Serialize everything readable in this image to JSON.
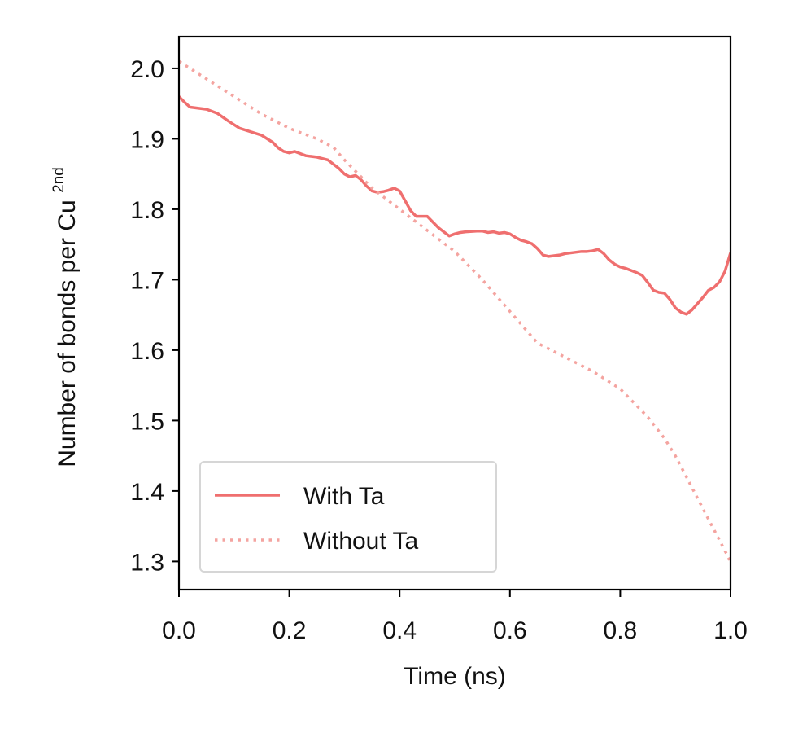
{
  "chart_data": {
    "type": "line",
    "title": "",
    "xlabel": "Time (ns)",
    "ylabel_main": "Number of bonds per Cu",
    "ylabel_sup": "2nd",
    "xlim": [
      0.0,
      1.0
    ],
    "ylim": [
      1.26,
      2.045
    ],
    "xticks": [
      0.0,
      0.2,
      0.4,
      0.6,
      0.8,
      1.0
    ],
    "xtick_labels": [
      "0.0",
      "0.2",
      "0.4",
      "0.6",
      "0.8",
      "1.0"
    ],
    "yticks": [
      1.3,
      1.4,
      1.5,
      1.6,
      1.7,
      1.8,
      1.9,
      2.0
    ],
    "ytick_labels": [
      "1.3",
      "1.4",
      "1.5",
      "1.6",
      "1.7",
      "1.8",
      "1.9",
      "2.0"
    ],
    "legend_position": "lower-left",
    "series": [
      {
        "name": "With Ta",
        "style": "solid",
        "color": "#ef6f6f",
        "x": [
          0.0,
          0.01,
          0.02,
          0.03,
          0.05,
          0.07,
          0.09,
          0.11,
          0.13,
          0.15,
          0.17,
          0.18,
          0.19,
          0.2,
          0.21,
          0.22,
          0.23,
          0.25,
          0.27,
          0.29,
          0.3,
          0.31,
          0.32,
          0.33,
          0.34,
          0.35,
          0.36,
          0.37,
          0.38,
          0.39,
          0.4,
          0.41,
          0.42,
          0.43,
          0.45,
          0.46,
          0.47,
          0.48,
          0.49,
          0.5,
          0.51,
          0.52,
          0.54,
          0.55,
          0.56,
          0.57,
          0.58,
          0.59,
          0.6,
          0.61,
          0.62,
          0.63,
          0.64,
          0.65,
          0.66,
          0.67,
          0.68,
          0.69,
          0.7,
          0.71,
          0.72,
          0.73,
          0.74,
          0.75,
          0.76,
          0.77,
          0.78,
          0.79,
          0.8,
          0.81,
          0.82,
          0.83,
          0.84,
          0.85,
          0.86,
          0.87,
          0.88,
          0.89,
          0.9,
          0.91,
          0.92,
          0.93,
          0.94,
          0.95,
          0.96,
          0.97,
          0.98,
          0.99,
          1.0
        ],
        "values": [
          1.96,
          1.952,
          1.945,
          1.944,
          1.942,
          1.936,
          1.925,
          1.915,
          1.91,
          1.905,
          1.895,
          1.887,
          1.882,
          1.88,
          1.882,
          1.879,
          1.876,
          1.874,
          1.87,
          1.858,
          1.85,
          1.846,
          1.848,
          1.842,
          1.833,
          1.826,
          1.824,
          1.825,
          1.827,
          1.83,
          1.826,
          1.812,
          1.798,
          1.79,
          1.79,
          1.782,
          1.774,
          1.768,
          1.762,
          1.765,
          1.767,
          1.768,
          1.769,
          1.769,
          1.767,
          1.768,
          1.766,
          1.767,
          1.765,
          1.76,
          1.756,
          1.754,
          1.751,
          1.744,
          1.735,
          1.733,
          1.734,
          1.735,
          1.737,
          1.738,
          1.739,
          1.74,
          1.74,
          1.741,
          1.743,
          1.737,
          1.728,
          1.722,
          1.718,
          1.716,
          1.713,
          1.71,
          1.706,
          1.696,
          1.685,
          1.682,
          1.681,
          1.672,
          1.66,
          1.654,
          1.651,
          1.657,
          1.666,
          1.675,
          1.685,
          1.689,
          1.697,
          1.712,
          1.738
        ]
      },
      {
        "name": "Without Ta",
        "style": "dotted",
        "color": "#f4a4a0",
        "x": [
          0.0,
          0.05,
          0.1,
          0.15,
          0.2,
          0.25,
          0.28,
          0.3,
          0.35,
          0.4,
          0.45,
          0.5,
          0.55,
          0.6,
          0.65,
          0.7,
          0.75,
          0.8,
          0.85,
          0.88,
          0.9,
          0.92,
          0.94,
          0.96,
          0.98,
          1.0
        ],
        "values": [
          2.01,
          1.985,
          1.96,
          1.935,
          1.915,
          1.9,
          1.888,
          1.87,
          1.83,
          1.8,
          1.77,
          1.74,
          1.7,
          1.655,
          1.61,
          1.59,
          1.57,
          1.545,
          1.505,
          1.475,
          1.45,
          1.42,
          1.39,
          1.36,
          1.33,
          1.3
        ]
      }
    ]
  }
}
